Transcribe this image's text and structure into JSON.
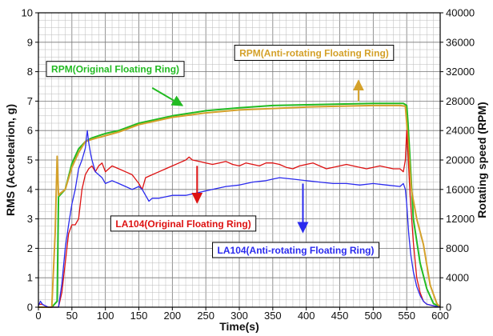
{
  "chart_data": {
    "type": "line",
    "xlabel": "Time(s)",
    "ylabel": "RMS (Accelearion, g)",
    "y2label": "Rotating speed (RPM)",
    "xlim": [
      0,
      600
    ],
    "ylim": [
      0,
      10
    ],
    "y2lim": [
      0,
      40000
    ],
    "x_ticks": [
      "0",
      "50",
      "100",
      "150",
      "200",
      "250",
      "300",
      "350",
      "400",
      "450",
      "500",
      "550",
      "600"
    ],
    "y_ticks": [
      "0",
      "1",
      "2",
      "3",
      "4",
      "5",
      "6",
      "7",
      "8",
      "9",
      "10"
    ],
    "y2_ticks": [
      "0",
      "4000",
      "8000",
      "12000",
      "16000",
      "20000",
      "24000",
      "28000",
      "32000",
      "36000",
      "40000"
    ],
    "grid": true,
    "series": [
      {
        "name": "RPM(Original Floating Ring)",
        "axis": "right",
        "color": "#22bb22",
        "x": [
          0,
          20,
          28,
          30,
          40,
          50,
          60,
          70,
          80,
          100,
          120,
          150,
          200,
          250,
          300,
          350,
          400,
          450,
          500,
          520,
          545,
          550,
          552,
          555,
          560,
          570,
          580,
          590,
          600
        ],
        "y": [
          0,
          0,
          800,
          15000,
          16000,
          19500,
          21500,
          22500,
          23000,
          23600,
          24000,
          25000,
          26000,
          26700,
          27100,
          27400,
          27500,
          27600,
          27700,
          27700,
          27700,
          27400,
          25000,
          20000,
          12000,
          6000,
          2500,
          500,
          0
        ]
      },
      {
        "name": "RPM(Anti-rotating Floating Ring)",
        "axis": "right",
        "color": "#d4a12a",
        "x": [
          0,
          20,
          25,
          28,
          30,
          33,
          40,
          50,
          60,
          70,
          80,
          100,
          120,
          150,
          200,
          250,
          300,
          350,
          400,
          450,
          500,
          540,
          548,
          550,
          553,
          557,
          565,
          575,
          585,
          595,
          600
        ],
        "y": [
          0,
          0,
          10000,
          20500,
          15200,
          15500,
          16000,
          19000,
          21000,
          22500,
          22800,
          23300,
          23800,
          24800,
          25800,
          26400,
          26800,
          27000,
          27200,
          27300,
          27400,
          27400,
          27300,
          25000,
          21000,
          16000,
          12000,
          8500,
          3000,
          500,
          0
        ]
      },
      {
        "name": "LA104(Original Floating Ring)",
        "axis": "left",
        "color": "#dd1111",
        "x": [
          0,
          5,
          10,
          15,
          20,
          25,
          30,
          35,
          40,
          45,
          50,
          55,
          60,
          65,
          70,
          75,
          80,
          85,
          90,
          95,
          100,
          110,
          120,
          130,
          140,
          150,
          155,
          160,
          170,
          180,
          190,
          200,
          210,
          220,
          225,
          230,
          240,
          250,
          260,
          270,
          280,
          290,
          300,
          310,
          320,
          330,
          340,
          350,
          360,
          370,
          380,
          390,
          400,
          410,
          420,
          430,
          440,
          450,
          460,
          470,
          480,
          490,
          500,
          510,
          520,
          530,
          540,
          545,
          548,
          550,
          552,
          555,
          560,
          565,
          570,
          575,
          580,
          590,
          600
        ],
        "y": [
          0.1,
          0.1,
          0.05,
          0,
          0,
          0,
          0,
          0.5,
          1.5,
          2.5,
          2.8,
          2.8,
          3.0,
          4.0,
          4.5,
          4.7,
          4.8,
          4.6,
          4.8,
          4.9,
          4.6,
          4.8,
          4.7,
          4.6,
          4.5,
          4.2,
          4.0,
          4.4,
          4.5,
          4.6,
          4.7,
          4.8,
          4.9,
          5.0,
          5.1,
          5.0,
          4.95,
          4.9,
          4.85,
          4.9,
          4.95,
          4.85,
          4.8,
          4.9,
          4.85,
          4.8,
          4.9,
          4.9,
          4.85,
          4.75,
          4.7,
          4.8,
          4.85,
          4.9,
          4.8,
          4.7,
          4.75,
          4.8,
          4.85,
          4.8,
          4.75,
          4.7,
          4.75,
          4.8,
          4.75,
          4.7,
          4.7,
          4.6,
          5.0,
          6.0,
          5.2,
          3.8,
          2.2,
          1.0,
          0.5,
          0.2,
          0.1,
          0.05,
          0
        ]
      },
      {
        "name": "LA104(Anti-rotating Floating Ring)",
        "axis": "left",
        "color": "#2a2aee",
        "x": [
          0,
          3,
          6,
          10,
          15,
          20,
          30,
          35,
          40,
          45,
          50,
          55,
          60,
          65,
          70,
          73,
          75,
          78,
          80,
          85,
          90,
          95,
          100,
          110,
          120,
          130,
          140,
          150,
          155,
          160,
          165,
          170,
          180,
          200,
          220,
          240,
          260,
          280,
          300,
          320,
          340,
          350,
          360,
          380,
          400,
          420,
          440,
          460,
          480,
          500,
          520,
          540,
          545,
          548,
          550,
          553,
          556,
          560,
          565,
          570,
          575,
          580,
          590,
          600
        ],
        "y": [
          0.05,
          0.2,
          0.1,
          0.05,
          0,
          0,
          0,
          0.8,
          2.0,
          2.8,
          3.5,
          4.0,
          4.7,
          5.0,
          5.4,
          6.0,
          5.6,
          5.2,
          5.0,
          4.6,
          4.5,
          4.4,
          4.2,
          4.3,
          4.2,
          4.1,
          4.0,
          4.1,
          4.0,
          3.8,
          3.6,
          3.7,
          3.7,
          3.8,
          3.8,
          3.9,
          4.0,
          4.1,
          4.15,
          4.25,
          4.3,
          4.35,
          4.4,
          4.35,
          4.3,
          4.25,
          4.2,
          4.2,
          4.15,
          4.2,
          4.15,
          4.1,
          4.2,
          4.0,
          3.5,
          2.5,
          1.8,
          1.2,
          0.7,
          0.4,
          0.2,
          0.1,
          0.05,
          0
        ]
      }
    ],
    "annotations": [
      {
        "text": "RPM(Original Floating Ring)",
        "color": "#22bb22",
        "box_x": 12,
        "box_y": 8.35,
        "arrow_from": [
          170,
          7.45
        ],
        "arrow_to": [
          215,
          6.85
        ]
      },
      {
        "text": "RPM(Anti-rotating Floating Ring)",
        "color": "#d4a12a",
        "box_x": 293,
        "box_y": 8.9,
        "arrow_from": [
          478,
          7.0
        ],
        "arrow_to": [
          478,
          7.7
        ]
      },
      {
        "text": "LA104(Original Floating Ring)",
        "color": "#dd1111",
        "box_x": 108,
        "box_y": 3.1,
        "arrow_from": [
          237,
          4.8
        ],
        "arrow_to": [
          237,
          3.55
        ]
      },
      {
        "text": "LA104(Anti-rotating Floating Ring)",
        "color": "#2a2aee",
        "box_x": 260,
        "box_y": 2.2,
        "arrow_from": [
          395,
          4.2
        ],
        "arrow_to": [
          395,
          2.55
        ]
      }
    ]
  }
}
